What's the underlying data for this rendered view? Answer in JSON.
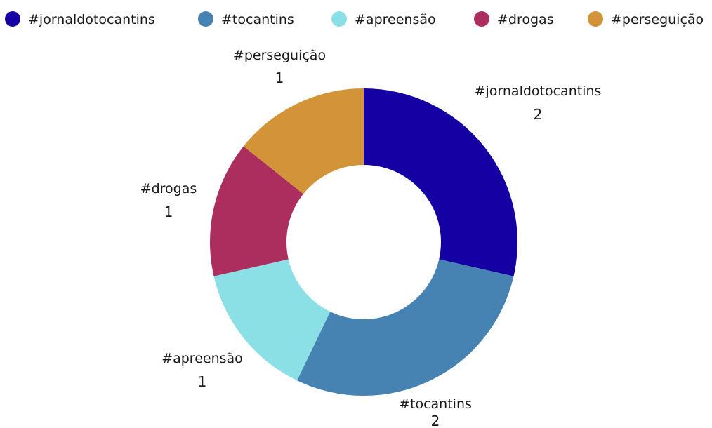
{
  "chart_data": {
    "type": "pie",
    "variant": "donut",
    "legend_position": "top",
    "categories": [
      "#jornaldotocantins",
      "#tocantins",
      "#apreensão",
      "#drogas",
      "#perseguição"
    ],
    "values": [
      2,
      2,
      1,
      1,
      1
    ],
    "colors": [
      "#1400a3",
      "#4683b3",
      "#8be0e6",
      "#ab2e5e",
      "#d39338"
    ]
  }
}
